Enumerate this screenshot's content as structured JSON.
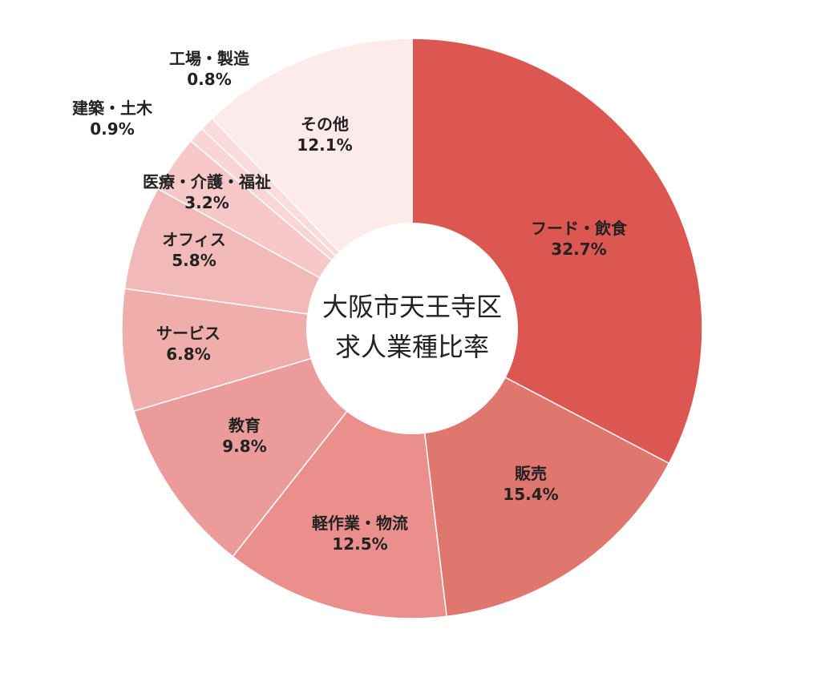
{
  "chart_data": {
    "type": "donut",
    "title_lines": [
      "大阪市天王寺区",
      "求人業種比率"
    ],
    "slices": [
      {
        "label": "フード・飲食",
        "value": 32.7,
        "value_label": "32.7%",
        "color": "#dc5751"
      },
      {
        "label": "販売",
        "value": 15.4,
        "value_label": "15.4%",
        "color": "#e0776f"
      },
      {
        "label": "軽作業・物流",
        "value": 12.5,
        "value_label": "12.5%",
        "color": "#eb8f8d"
      },
      {
        "label": "教育",
        "value": 9.8,
        "value_label": "9.8%",
        "color": "#ec9b9b"
      },
      {
        "label": "サービス",
        "value": 6.8,
        "value_label": "6.8%",
        "color": "#efadab"
      },
      {
        "label": "オフィス",
        "value": 5.8,
        "value_label": "5.8%",
        "color": "#f1b9b8"
      },
      {
        "label": "医療・介護・福祉",
        "value": 3.2,
        "value_label": "3.2%",
        "color": "#f6c9c8"
      },
      {
        "label": "建築・土木",
        "value": 0.9,
        "value_label": "0.9%",
        "color": "#f9d6d5"
      },
      {
        "label": "工場・製造",
        "value": 0.8,
        "value_label": "0.8%",
        "color": "#fadcdc"
      },
      {
        "label": "その他",
        "value": 12.1,
        "value_label": "12.1%",
        "color": "#fdeaea"
      }
    ]
  }
}
